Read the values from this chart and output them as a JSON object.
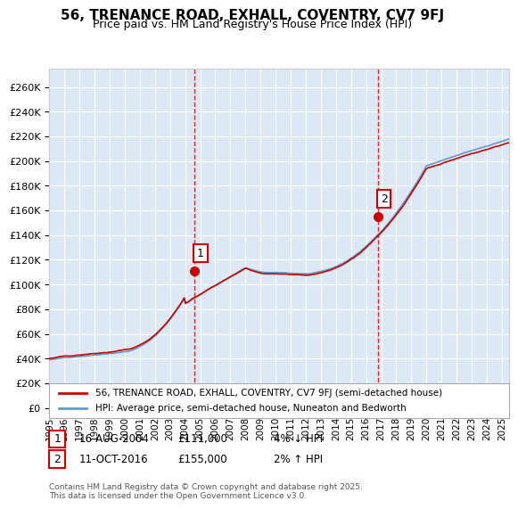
{
  "title": "56, TRENANCE ROAD, EXHALL, COVENTRY, CV7 9FJ",
  "subtitle": "Price paid vs. HM Land Registry's House Price Index (HPI)",
  "ylabel_ticks": [
    "£0",
    "£20K",
    "£40K",
    "£60K",
    "£80K",
    "£100K",
    "£120K",
    "£140K",
    "£160K",
    "£180K",
    "£200K",
    "£220K",
    "£240K",
    "£260K"
  ],
  "ytick_values": [
    0,
    20000,
    40000,
    60000,
    80000,
    100000,
    120000,
    140000,
    160000,
    180000,
    200000,
    220000,
    240000,
    260000
  ],
  "ylim": [
    0,
    275000
  ],
  "xlim_start": 1995.0,
  "xlim_end": 2025.5,
  "sale1_x": 2004.617,
  "sale1_y": 111000,
  "sale1_label": "1",
  "sale2_x": 2016.78,
  "sale2_y": 155000,
  "sale2_label": "2",
  "line_color_price": "#cc0000",
  "line_color_hpi": "#6699cc",
  "background_color": "#dce9f5",
  "legend_label_price": "56, TRENANCE ROAD, EXHALL, COVENTRY, CV7 9FJ (semi-detached house)",
  "legend_label_hpi": "HPI: Average price, semi-detached house, Nuneaton and Bedworth",
  "annotation1_date": "16-AUG-2004",
  "annotation1_price": "£111,000",
  "annotation1_hpi": "4% ↓ HPI",
  "annotation2_date": "11-OCT-2016",
  "annotation2_price": "£155,000",
  "annotation2_hpi": "2% ↑ HPI",
  "copyright_text": "Contains HM Land Registry data © Crown copyright and database right 2025.\nThis data is licensed under the Open Government Licence v3.0.",
  "xtick_years": [
    1995,
    1996,
    1997,
    1998,
    1999,
    2000,
    2001,
    2002,
    2003,
    2004,
    2005,
    2006,
    2007,
    2008,
    2009,
    2010,
    2011,
    2012,
    2013,
    2014,
    2015,
    2016,
    2017,
    2018,
    2019,
    2020,
    2021,
    2022,
    2023,
    2024,
    2025
  ]
}
